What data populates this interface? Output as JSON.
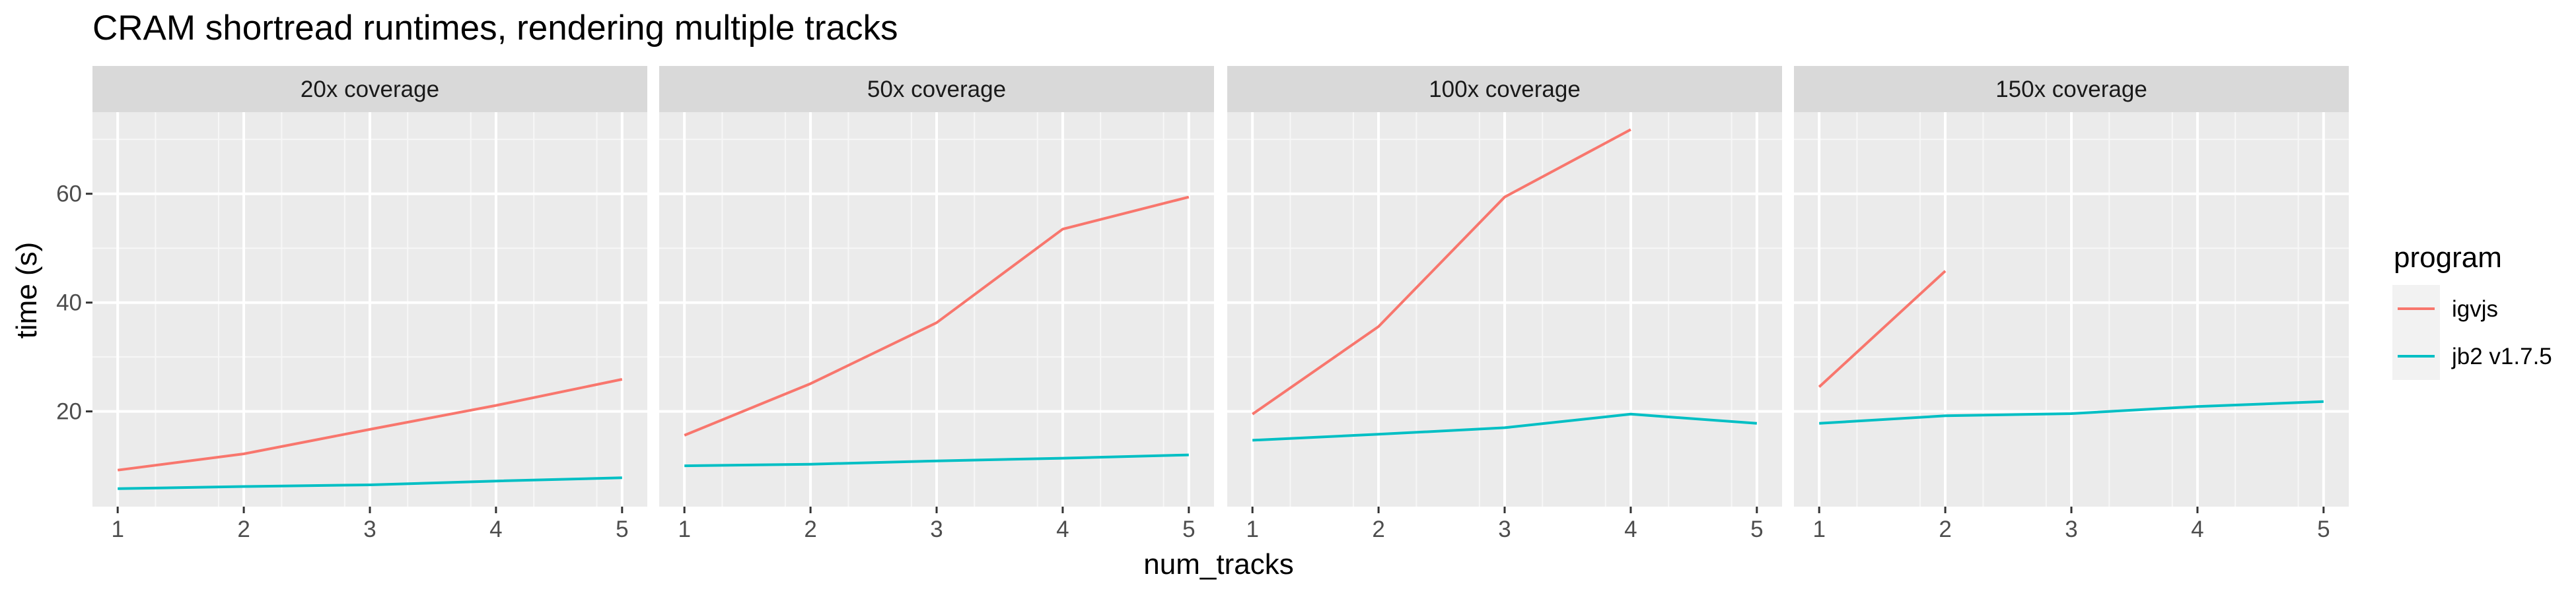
{
  "chart_data": {
    "type": "line",
    "title": "CRAM shortread runtimes, rendering multiple tracks",
    "xlabel": "num_tracks",
    "ylabel": "time (s)",
    "x_ticks": [
      1,
      2,
      3,
      4,
      5
    ],
    "y_ticks": [
      20,
      40,
      60
    ],
    "xlim": [
      0.8,
      5.2
    ],
    "ylim": [
      2.5,
      75
    ],
    "grid": true,
    "legend": {
      "title": "program",
      "position": "right",
      "entries": [
        {
          "name": "igvjs",
          "color": "#F8766D"
        },
        {
          "name": "jb2 v1.7.5",
          "color": "#00BFC4"
        }
      ]
    },
    "panels": [
      {
        "label": "20x coverage",
        "series": [
          {
            "name": "igvjs",
            "x": [
              1,
              2,
              3,
              4,
              5
            ],
            "values": [
              9.2,
              12.2,
              16.7,
              21.1,
              25.9
            ]
          },
          {
            "name": "jb2 v1.7.5",
            "x": [
              1,
              2,
              3,
              4,
              5
            ],
            "values": [
              5.8,
              6.2,
              6.5,
              7.2,
              7.8
            ]
          }
        ]
      },
      {
        "label": "50x coverage",
        "series": [
          {
            "name": "igvjs",
            "x": [
              1,
              2,
              3,
              4,
              5
            ],
            "values": [
              15.6,
              25.1,
              36.3,
              53.5,
              59.4
            ]
          },
          {
            "name": "jb2 v1.7.5",
            "x": [
              1,
              2,
              3,
              4,
              5
            ],
            "values": [
              10.0,
              10.3,
              10.9,
              11.4,
              12.0
            ]
          }
        ]
      },
      {
        "label": "100x coverage",
        "series": [
          {
            "name": "igvjs",
            "x": [
              1,
              2,
              3,
              4
            ],
            "values": [
              19.5,
              35.6,
              59.4,
              71.8
            ]
          },
          {
            "name": "jb2 v1.7.5",
            "x": [
              1,
              2,
              3,
              4,
              5
            ],
            "values": [
              14.7,
              15.8,
              17.0,
              19.5,
              17.8
            ]
          }
        ]
      },
      {
        "label": "150x coverage",
        "series": [
          {
            "name": "igvjs",
            "x": [
              1,
              2
            ],
            "values": [
              24.5,
              45.8
            ]
          },
          {
            "name": "jb2 v1.7.5",
            "x": [
              1,
              2,
              3,
              4,
              5
            ],
            "values": [
              17.8,
              19.2,
              19.6,
              20.9,
              21.8
            ]
          }
        ]
      }
    ]
  }
}
